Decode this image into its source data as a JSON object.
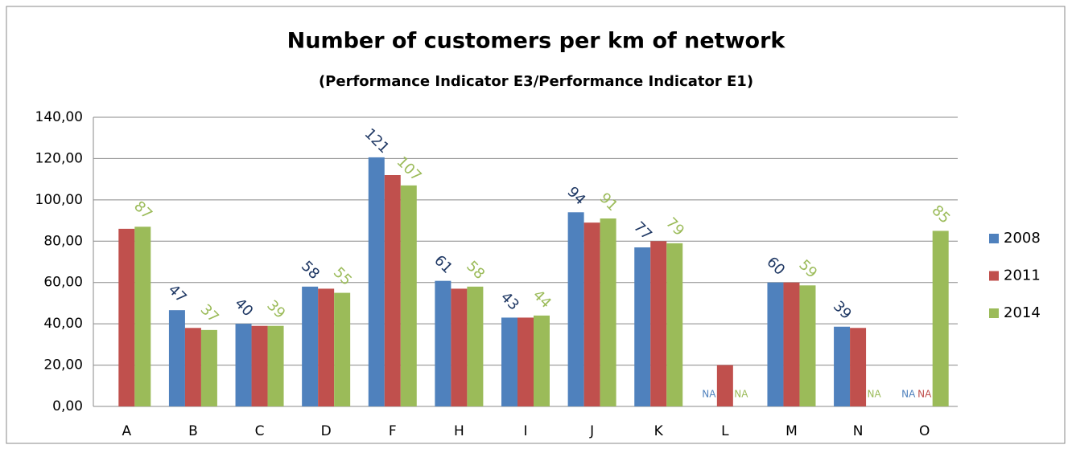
{
  "chart_data": {
    "type": "bar",
    "title": "Number of customers per km of network",
    "subtitle": "(Performance Indicator E3/Performance Indicator E1)",
    "categories": [
      "A",
      "B",
      "C",
      "D",
      "F",
      "H",
      "I",
      "J",
      "K",
      "L",
      "M",
      "N",
      "O"
    ],
    "series": [
      {
        "name": "2008",
        "color": "#4f81bd",
        "label_color": "#1f3864",
        "values": [
          null,
          46.6,
          40,
          58,
          120.6,
          60.8,
          43,
          94,
          77,
          null,
          60,
          38.6,
          null
        ],
        "value_labels": [
          null,
          "47",
          "40",
          "58",
          "121",
          "61",
          "43",
          "94",
          "77",
          "NA",
          "60",
          "39",
          "NA"
        ]
      },
      {
        "name": "2011",
        "color": "#c0504d",
        "label_color": "#c0504d",
        "values": [
          86,
          38,
          39,
          57,
          112,
          57,
          43,
          89,
          80,
          20,
          60,
          38,
          null
        ],
        "value_labels": [
          null,
          null,
          null,
          null,
          null,
          null,
          null,
          null,
          null,
          null,
          null,
          null,
          "NA"
        ]
      },
      {
        "name": "2014",
        "color": "#9bbb59",
        "label_color": "#9bbb59",
        "values": [
          87,
          37,
          39,
          55,
          107,
          58,
          44,
          91,
          79,
          null,
          58.6,
          null,
          85
        ],
        "value_labels": [
          "87",
          "37",
          "39",
          "55",
          "107",
          "58",
          "44",
          "91",
          "79",
          "NA",
          "59",
          "NA",
          "85"
        ]
      }
    ],
    "ylim": [
      0,
      140
    ],
    "yticks": [
      {
        "value": 0,
        "label": "0,00"
      },
      {
        "value": 20,
        "label": "20,00"
      },
      {
        "value": 40,
        "label": "40,00"
      },
      {
        "value": 60,
        "label": "60,00"
      },
      {
        "value": 80,
        "label": "80,00"
      },
      {
        "value": 100,
        "label": "100,00"
      },
      {
        "value": 120,
        "label": "120,00"
      },
      {
        "value": 140,
        "label": "140,00"
      }
    ],
    "grid": true,
    "legend": "right"
  }
}
